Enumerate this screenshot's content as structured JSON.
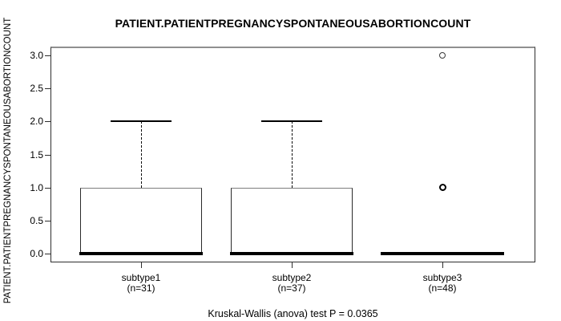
{
  "colors": {
    "foreground": "#000000",
    "background": "#ffffff",
    "frame": "#2e2e2e",
    "frame_top": "#8f8f8f"
  },
  "chart_data": {
    "type": "boxplot",
    "title": "PATIENT.PATIENTPREGNANCYSPONTANEOUSABORTIONCOUNT",
    "ylabel": "PATIENT.PATIENTPREGNANCYSPONTANEOUSABORTIONCOUNT",
    "xlabel": "",
    "ylim": [
      0,
      3
    ],
    "yticks": [
      0.0,
      0.5,
      1.0,
      1.5,
      2.0,
      2.5,
      3.0
    ],
    "grid": false,
    "categories": [
      "subtype1",
      "subtype2",
      "subtype3"
    ],
    "sublabels": [
      "(n=31)",
      "(n=37)",
      "(n=48)"
    ],
    "series": [
      {
        "name": "subtype1",
        "n": 31,
        "whisker_low": 0,
        "q1": 0,
        "median": 0,
        "q3": 1,
        "whisker_high": 2,
        "outliers": []
      },
      {
        "name": "subtype2",
        "n": 37,
        "whisker_low": 0,
        "q1": 0,
        "median": 0,
        "q3": 1,
        "whisker_high": 2,
        "outliers": []
      },
      {
        "name": "subtype3",
        "n": 48,
        "whisker_low": 0,
        "q1": 0,
        "median": 0,
        "q3": 0,
        "whisker_high": 0,
        "outliers": [
          {
            "value": 3.0,
            "emphasis": false
          },
          {
            "value": 1.0,
            "emphasis": true
          }
        ]
      }
    ],
    "annotation": "Kruskal-Wallis (anova) test P = 0.0365"
  }
}
